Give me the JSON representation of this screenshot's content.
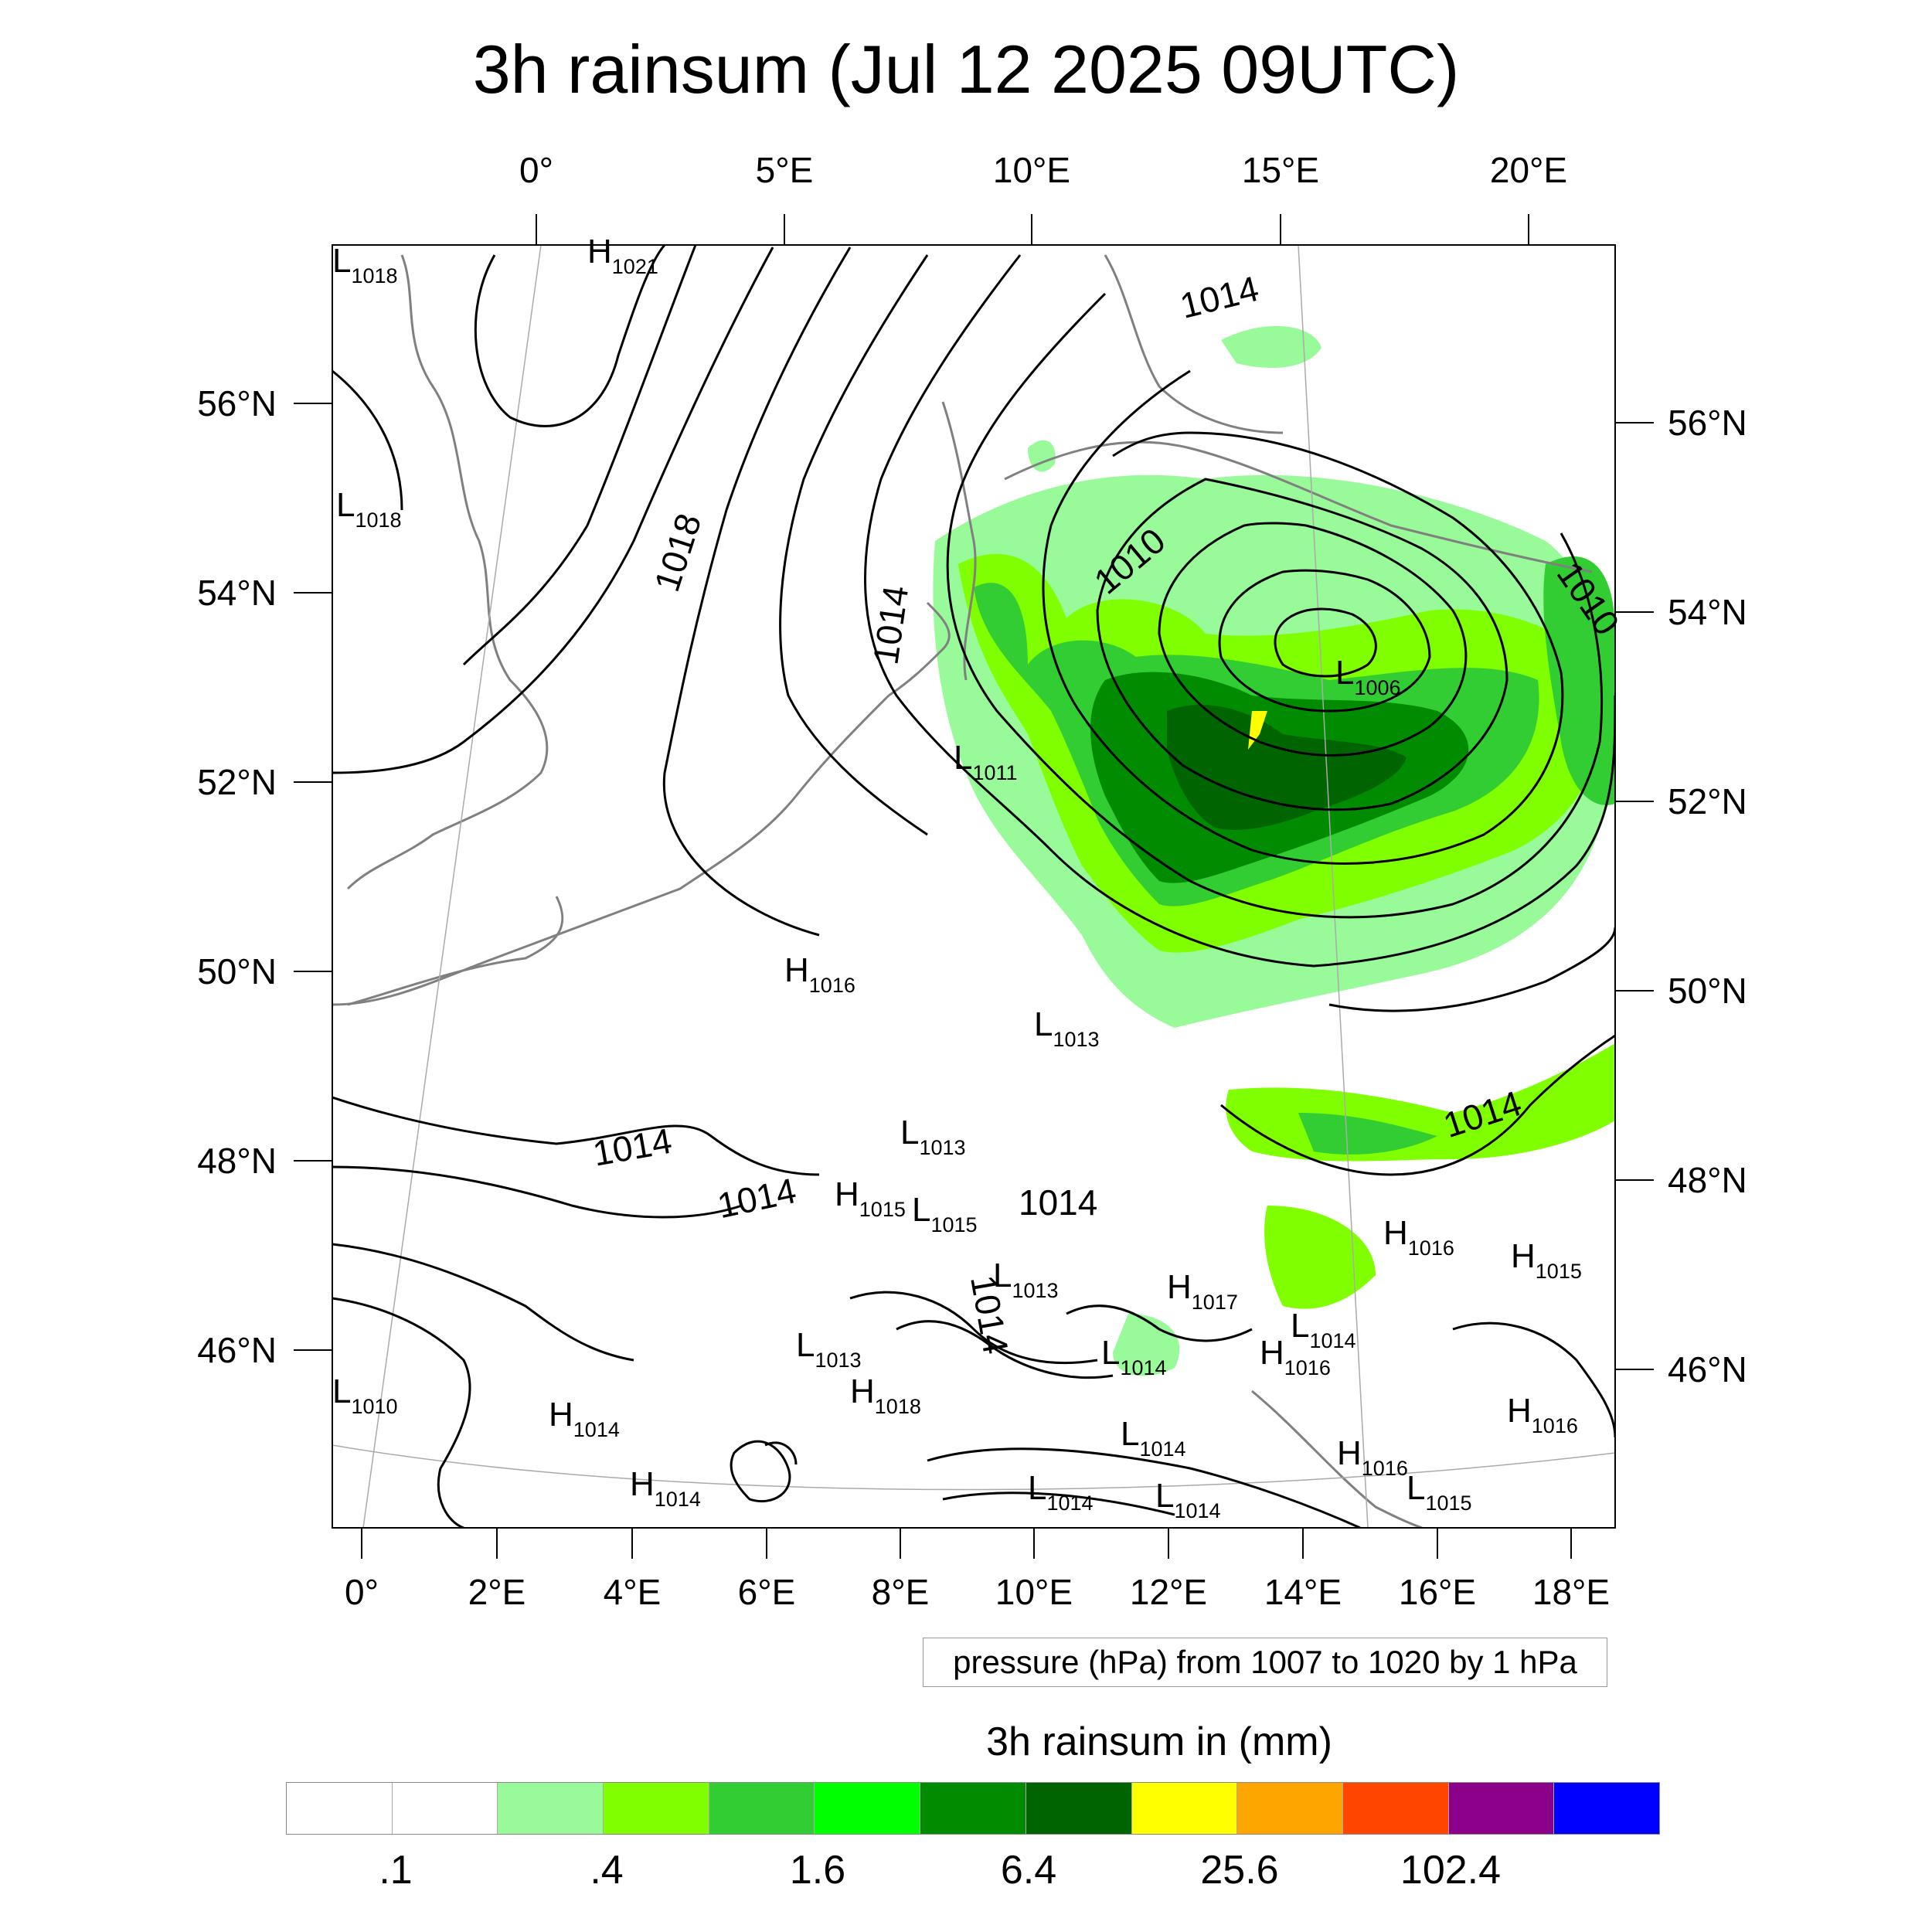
{
  "title": "3h rainsum (Jul 12 2025 09UTC)",
  "map": {
    "top_lon_labels": [
      "0°",
      "5°E",
      "10°E",
      "15°E",
      "20°E"
    ],
    "bottom_lon_labels": [
      "0°",
      "2°E",
      "4°E",
      "6°E",
      "8°E",
      "10°E",
      "12°E",
      "14°E",
      "16°E",
      "18°E"
    ],
    "left_lat_labels": [
      "56°N",
      "54°N",
      "52°N",
      "50°N",
      "48°N",
      "46°N"
    ],
    "right_lat_labels": [
      "56°N",
      "54°N",
      "52°N",
      "50°N",
      "48°N",
      "46°N"
    ],
    "isobar_labels": [
      "1014",
      "1018",
      "1014",
      "1010",
      "1010",
      "1014",
      "1014",
      "1014",
      "1014",
      "1014"
    ],
    "pressure_centers": [
      {
        "type": "L",
        "value": "1018"
      },
      {
        "type": "H",
        "value": "1021"
      },
      {
        "type": "L",
        "value": "1018"
      },
      {
        "type": "L",
        "value": "1006"
      },
      {
        "type": "L",
        "value": "1011"
      },
      {
        "type": "H",
        "value": "1016"
      },
      {
        "type": "L",
        "value": "1013"
      },
      {
        "type": "L",
        "value": "1013"
      },
      {
        "type": "H",
        "value": "1015"
      },
      {
        "type": "L",
        "value": "1015"
      },
      {
        "type": "H",
        "value": "1016"
      },
      {
        "type": "H",
        "value": "1015"
      },
      {
        "type": "L",
        "value": "1013"
      },
      {
        "type": "H",
        "value": "1017"
      },
      {
        "type": "L",
        "value": "1013"
      },
      {
        "type": "H",
        "value": "1018"
      },
      {
        "type": "L",
        "value": "1014"
      },
      {
        "type": "H",
        "value": "1016"
      },
      {
        "type": "L",
        "value": "1014"
      },
      {
        "type": "L",
        "value": "1010"
      },
      {
        "type": "H",
        "value": "1014"
      },
      {
        "type": "H",
        "value": "1014"
      },
      {
        "type": "L",
        "value": "1014"
      },
      {
        "type": "L",
        "value": "1014"
      },
      {
        "type": "L",
        "value": "1014"
      },
      {
        "type": "H",
        "value": "1016"
      },
      {
        "type": "H",
        "value": "1016"
      },
      {
        "type": "L",
        "value": "1015"
      }
    ]
  },
  "pressure_note": "pressure (hPa) from 1007 to 1020 by 1 hPa",
  "legend": {
    "title": "3h rainsum in (mm)",
    "colors": [
      "#ffffff",
      "#ffffff",
      "#99fa99",
      "#7fff00",
      "#32cd32",
      "#00ff00",
      "#008b00",
      "#006400",
      "#ffff00",
      "#ffa500",
      "#ff4500",
      "#8b008b",
      "#0000ff"
    ],
    "labels": [
      ".1",
      ".4",
      "1.6",
      "6.4",
      "25.6",
      "102.4"
    ]
  }
}
